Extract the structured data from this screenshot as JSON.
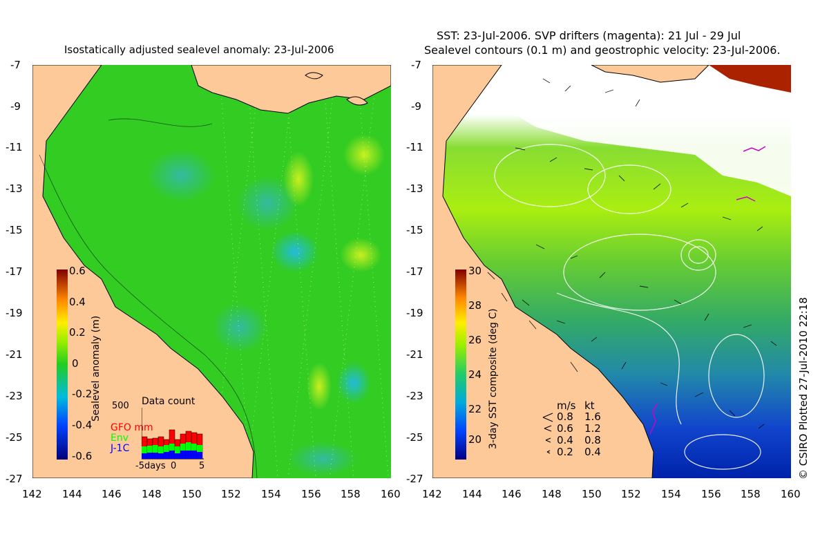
{
  "left_panel": {
    "title": "Isostatically adjusted sealevel anomaly: 23-Jul-2006",
    "y_ticks": [
      "-7",
      "-9",
      "-11",
      "-13",
      "-15",
      "-17",
      "-19",
      "-21",
      "-23",
      "-25",
      "-27"
    ],
    "x_ticks": [
      "142",
      "144",
      "146",
      "148",
      "150",
      "152",
      "154",
      "156",
      "158",
      "160"
    ],
    "colorbar": {
      "label": "Sealevel anomaly (m)",
      "ticks": [
        "0.6",
        "0.4",
        "0.2",
        "0",
        "-0.2",
        "-0.4",
        "-0.6"
      ],
      "range": [
        -0.6,
        0.6
      ]
    },
    "inset": {
      "title": "Data count",
      "ymax_label": "500",
      "legend": [
        {
          "label": "GFO mm",
          "color": "#ff0000"
        },
        {
          "label": "Env",
          "color": "#00ff00"
        },
        {
          "label": "J-1C",
          "color": "#0000ff"
        }
      ],
      "x_labels": [
        "-5days",
        "0",
        "5"
      ]
    }
  },
  "right_panel": {
    "title_line1": "SST: 23-Jul-2006. SVP drifters (magenta): 21 Jul - 29 Jul",
    "title_line2": "Sealevel contours (0.1 m) and geostrophic velocity: 23-Jul-2006.",
    "y_ticks": [
      "-7",
      "-9",
      "-11",
      "-13",
      "-15",
      "-17",
      "-19",
      "-21",
      "-23",
      "-25",
      "-27"
    ],
    "x_ticks": [
      "142",
      "144",
      "146",
      "148",
      "150",
      "152",
      "154",
      "156",
      "158",
      "160"
    ],
    "colorbar": {
      "label": "3-day SST composite (deg C)",
      "ticks": [
        "30",
        "28",
        "26",
        "24",
        "22",
        "20"
      ],
      "range": [
        19,
        30
      ]
    },
    "velocity_key": {
      "headers": [
        "m/s",
        "kt"
      ],
      "rows": [
        [
          "0.8",
          "1.6"
        ],
        [
          "0.6",
          "1.2"
        ],
        [
          "0.4",
          "0.8"
        ],
        [
          "0.2",
          "0.4"
        ]
      ]
    }
  },
  "credit": "© CSIRO Plotted 27-Jul-2010 22:18",
  "colors": {
    "land": "#fdc999",
    "ocean_left": "#33cc22",
    "coast": "#000000"
  }
}
